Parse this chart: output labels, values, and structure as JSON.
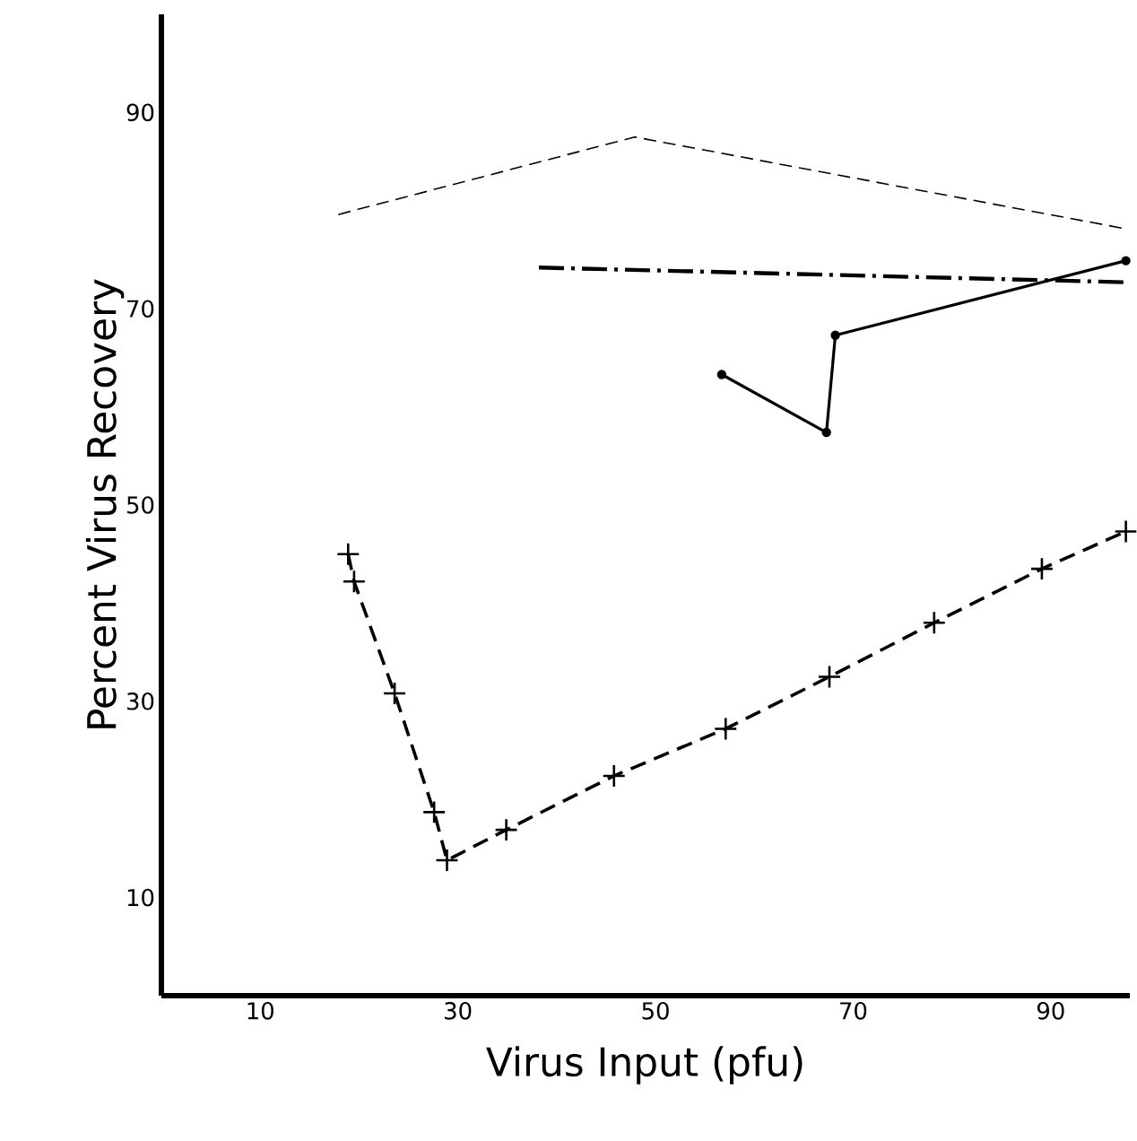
{
  "chart_data": {
    "type": "line",
    "xlabel": "Virus Input (pfu)",
    "ylabel": "Percent Virus Recovery",
    "xlim": [
      0,
      98
    ],
    "ylim": [
      0,
      100
    ],
    "xticks": [
      10,
      30,
      50,
      70,
      90
    ],
    "yticks": [
      10,
      30,
      50,
      70,
      90
    ],
    "grid": false,
    "series": [
      {
        "color": "#000000",
        "line_style": "dashed",
        "marker": "none",
        "x": [
          17.9,
          47.9,
          97.3
        ],
        "values": [
          79.6,
          87.5,
          78.2
        ]
      },
      {
        "color": "#000000",
        "line_style": "dashdot",
        "marker": "none",
        "x": [
          38.2,
          97.6
        ],
        "values": [
          74.2,
          72.7
        ]
      },
      {
        "color": "#000000",
        "line_style": "solid",
        "marker": "circle",
        "x": [
          56.7,
          67.3,
          68.2,
          97.6
        ],
        "values": [
          63.3,
          57.4,
          67.3,
          74.9
        ]
      },
      {
        "color": "#000000",
        "line_style": "dashed",
        "marker": "cross",
        "x": [
          18.9,
          19.5,
          23.6,
          27.6,
          28.9,
          34.9,
          45.8,
          57.1,
          67.6,
          78.2,
          89.1,
          97.6
        ],
        "values": [
          45.0,
          42.2,
          30.8,
          18.7,
          13.8,
          16.9,
          22.4,
          27.2,
          32.5,
          38.0,
          43.5,
          47.3
        ]
      }
    ]
  }
}
